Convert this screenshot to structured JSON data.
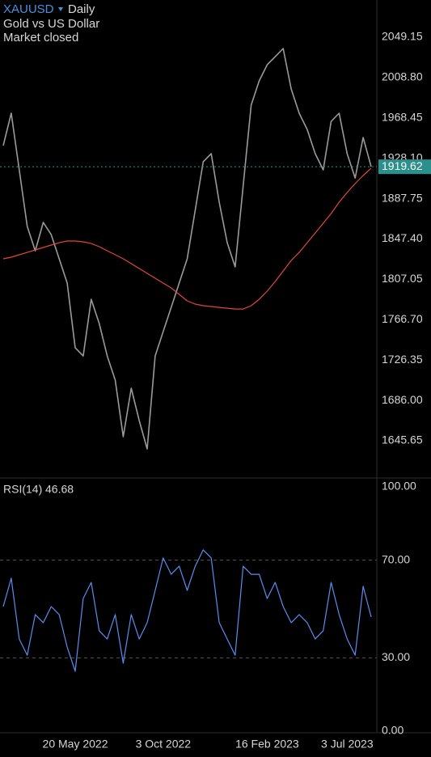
{
  "header": {
    "symbol": "XAUUSD",
    "interval": "Daily",
    "name": "Gold vs US Dollar",
    "status": "Market closed"
  },
  "chart_data": [
    {
      "type": "line",
      "series": [
        {
          "color": "#9a9a9a",
          "values": [
            1940.8,
            1973.1,
            1916.5,
            1859.9,
            1835.6,
            1864.0,
            1851.8,
            1827.6,
            1803.3,
            1738.6,
            1730.5,
            1787.1,
            1762.9,
            1730.5,
            1706.3,
            1649.7,
            1698.2,
            1665.8,
            1637.5,
            1730.5,
            1754.8,
            1779.0,
            1803.3,
            1827.6,
            1876.1,
            1924.6,
            1932.7,
            1884.2,
            1843.7,
            1819.5,
            1900.4,
            1981.2,
            2005.5,
            2021.6,
            2029.7,
            2037.8,
            1997.4,
            1973.1,
            1956.9,
            1932.7,
            1916.5,
            1965.0,
            1973.1,
            1932.7,
            1908.4,
            1948.9,
            1919.6
          ]
        },
        {
          "color": "#e0473c",
          "values": [
            1827.6,
            1829.2,
            1831.6,
            1834.0,
            1836.5,
            1838.9,
            1841.3,
            1843.7,
            1845.4,
            1845.4,
            1844.6,
            1842.9,
            1839.7,
            1835.6,
            1831.6,
            1827.6,
            1822.7,
            1817.9,
            1813.0,
            1808.2,
            1803.3,
            1798.5,
            1792.0,
            1785.5,
            1782.3,
            1780.7,
            1779.9,
            1779.0,
            1778.2,
            1777.4,
            1777.4,
            1780.7,
            1787.1,
            1795.2,
            1804.9,
            1815.4,
            1825.9,
            1834.0,
            1843.7,
            1853.4,
            1863.1,
            1872.9,
            1884.2,
            1893.9,
            1902.8,
            1910.9,
            1918.1
          ]
        }
      ],
      "ylim": [
        1609.25,
        2086.35
      ],
      "yticks": [
        2049.15,
        {
          "value": 2008.8,
          "label": "2008.80"
        },
        1968.45,
        {
          "value": 1928.1,
          "label": "1928.10"
        },
        1887.75,
        {
          "value": 1847.4,
          "label": "1847.40"
        },
        1807.05,
        {
          "value": 1766.7,
          "label": "1766.70"
        },
        1726.35,
        {
          "value": 1686,
          "label": "1686.00"
        },
        1645.65
      ],
      "last_price": 1919.62,
      "last_price_color": "#2b8f8b",
      "grid": false
    },
    {
      "type": "line",
      "title": "RSI(14)",
      "categories": [
        null,
        null,
        null,
        null,
        null,
        null,
        null,
        null,
        null,
        "20 May 2022",
        null,
        null,
        null,
        null,
        null,
        null,
        null,
        null,
        null,
        null,
        "3 Oct 2022",
        null,
        null,
        null,
        null,
        null,
        null,
        null,
        null,
        null,
        null,
        null,
        null,
        "16 Feb 2023",
        null,
        null,
        null,
        null,
        null,
        null,
        null,
        null,
        null,
        "3 Jul 2023",
        null,
        null,
        null
      ],
      "series": [
        {
          "color": "#5b8def",
          "values": [
            51.0,
            62.6,
            37.7,
            31.1,
            47.7,
            44.4,
            51.0,
            47.7,
            34.4,
            24.5,
            54.3,
            60.9,
            41.1,
            37.7,
            47.7,
            27.8,
            47.7,
            37.7,
            44.4,
            57.6,
            70.9,
            64.2,
            67.5,
            57.6,
            67.5,
            74.2,
            70.9,
            44.4,
            37.7,
            31.1,
            67.5,
            64.2,
            64.2,
            54.3,
            60.9,
            51.0,
            44.4,
            47.7,
            44.4,
            37.7,
            41.1,
            60.9,
            47.7,
            37.7,
            31.1,
            59.3,
            46.68
          ]
        }
      ],
      "ylim": [
        0,
        100
      ],
      "yticks": [
        {
          "value": 100,
          "label": "100.00"
        },
        {
          "value": 70,
          "label": "70.00"
        },
        {
          "value": 30,
          "label": "30.00"
        },
        {
          "value": 0,
          "label": "0.00"
        }
      ],
      "grid": true
    }
  ]
}
